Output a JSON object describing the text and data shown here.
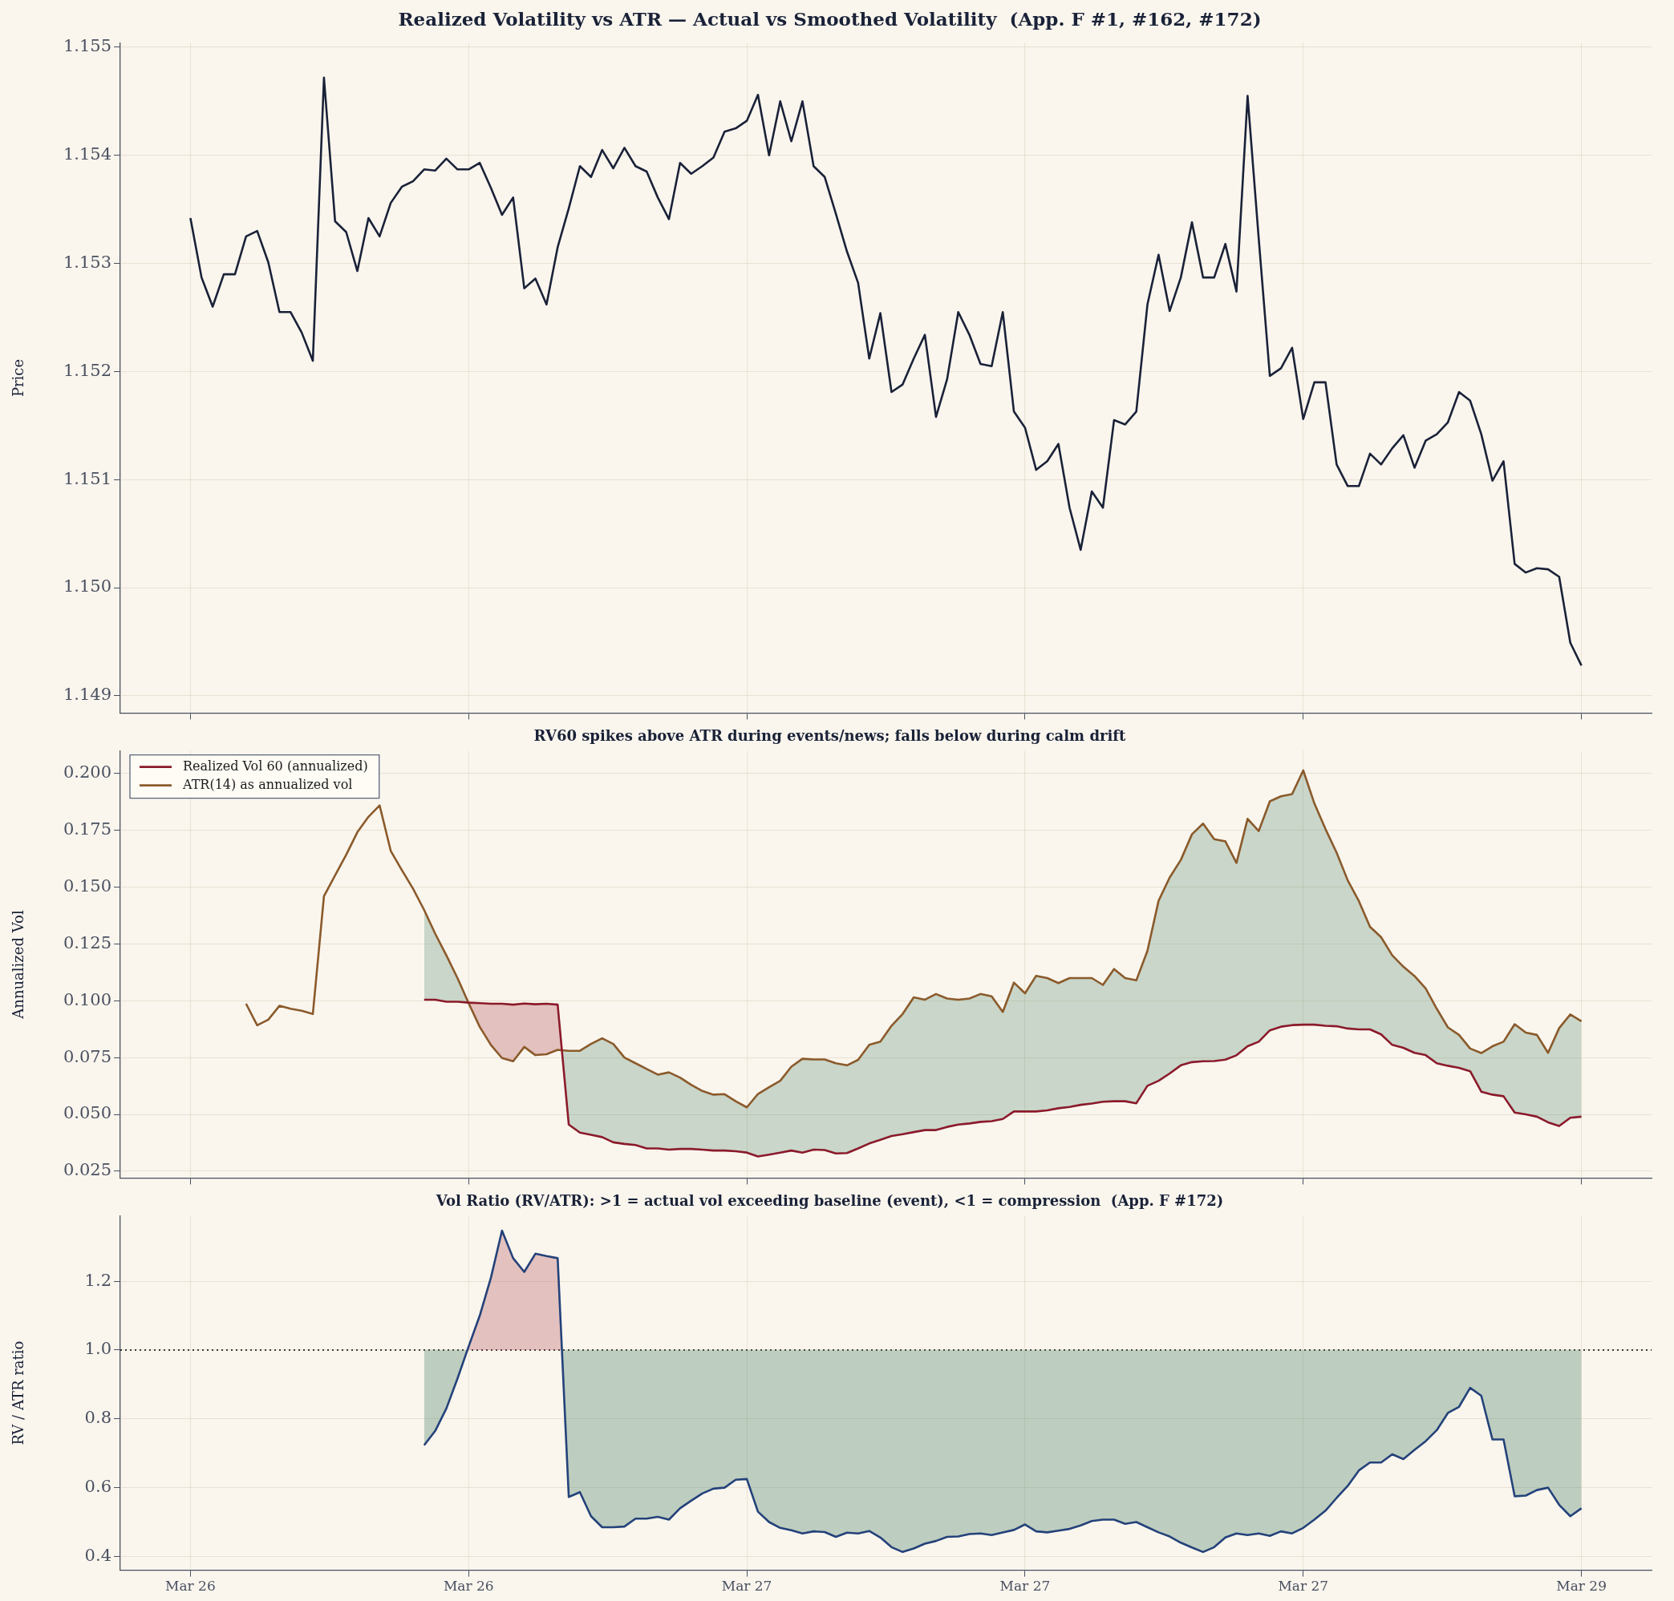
{
  "chart_data": [
    {
      "type": "line",
      "title": "Realized Volatility vs ATR — Actual vs Smoothed Volatility  (App. F #1, #162, #172)",
      "ylabel": "Price",
      "categories": [
        null,
        null,
        null,
        null,
        null,
        null,
        null,
        null,
        null,
        null,
        null,
        null,
        null,
        null,
        null,
        null,
        null,
        null,
        null,
        null,
        null,
        null,
        null,
        null,
        null,
        null,
        null,
        null,
        null,
        null,
        null,
        null,
        null,
        null,
        null,
        null,
        null,
        null,
        null,
        null,
        null,
        null,
        null,
        null,
        null,
        null,
        null,
        null,
        null,
        null,
        null,
        null,
        null,
        null,
        null,
        null,
        null,
        null,
        null,
        null,
        null,
        null,
        null,
        null,
        null,
        null,
        null,
        null,
        null,
        null,
        null,
        null,
        null,
        null,
        null,
        null,
        null,
        null,
        null,
        null,
        null,
        null,
        null,
        null,
        null,
        null,
        null,
        null,
        null,
        null,
        null,
        null,
        null,
        null,
        null,
        null,
        null,
        null,
        null,
        null,
        null,
        null,
        null,
        null,
        null,
        null,
        null,
        null,
        null,
        null,
        null,
        null,
        null,
        null,
        null,
        null,
        null,
        null,
        null,
        null,
        null,
        null,
        null,
        null,
        null,
        null
      ],
      "ylim": [
        1.14884,
        1.15504
      ],
      "yticks": [
        1.149,
        {
          "value": 1.15,
          "label": "1.150"
        },
        1.151,
        1.152,
        1.153,
        1.154,
        1.155
      ],
      "grid": true,
      "legend": false,
      "marker": "none",
      "tick_labels": "y",
      "series": [
        {
          "color": "#1a2238",
          "values": [
            1.15342,
            1.15287,
            1.1526,
            1.1529,
            1.1529,
            1.15325,
            1.1533,
            1.15301,
            1.15255,
            1.15255,
            1.15236,
            1.1521,
            1.15472,
            1.15339,
            1.15329,
            1.15293,
            1.15342,
            1.15325,
            1.15356,
            1.15371,
            1.15376,
            1.15387,
            1.15386,
            1.15397,
            1.15387,
            1.15387,
            1.15393,
            1.1537,
            1.15345,
            1.15361,
            1.15277,
            1.15286,
            1.15262,
            1.15315,
            1.15351,
            1.1539,
            1.1538,
            1.15405,
            1.15388,
            1.15407,
            1.1539,
            1.15385,
            1.15361,
            1.15341,
            1.15393,
            1.15383,
            1.1539,
            1.15398,
            1.15422,
            1.15425,
            1.15432,
            1.15456,
            1.154,
            1.1545,
            1.15413,
            1.1545,
            1.1539,
            1.1538,
            1.15346,
            1.15311,
            1.15282,
            1.15212,
            1.15254,
            1.15181,
            1.15188,
            1.15212,
            1.15234,
            1.15158,
            1.15193,
            1.15255,
            1.15234,
            1.15207,
            1.15205,
            1.15255,
            1.15163,
            1.15148,
            1.15109,
            1.15117,
            1.15133,
            1.15074,
            1.15035,
            1.15089,
            1.15074,
            1.15155,
            1.15151,
            1.15163,
            1.15262,
            1.15308,
            1.15256,
            1.15287,
            1.15338,
            1.15287,
            1.15287,
            1.15318,
            1.15274,
            1.15455,
            1.15323,
            1.15196,
            1.15203,
            1.15222,
            1.15156,
            1.1519,
            1.1519,
            1.15114,
            1.15094,
            1.15094,
            1.15124,
            1.15114,
            1.15129,
            1.15141,
            1.15111,
            1.15136,
            1.15142,
            1.15153,
            1.15181,
            1.15173,
            1.15142,
            1.15099,
            1.15117,
            1.15022,
            1.15014,
            1.15018,
            1.15017,
            1.1501,
            1.14949,
            1.14928
          ]
        }
      ]
    },
    {
      "type": "line",
      "title": "RV60 spikes above ATR during events/news; falls below during calm drift",
      "ylabel": "Annualized Vol",
      "categories": [
        null,
        null,
        null,
        null,
        null,
        null,
        null,
        null,
        null,
        null,
        null,
        null,
        null,
        null,
        null,
        null,
        null,
        null,
        null,
        null,
        null,
        null,
        null,
        null,
        null,
        null,
        null,
        null,
        null,
        null,
        null,
        null,
        null,
        null,
        null,
        null,
        null,
        null,
        null,
        null,
        null,
        null,
        null,
        null,
        null,
        null,
        null,
        null,
        null,
        null,
        null,
        null,
        null,
        null,
        null,
        null,
        null,
        null,
        null,
        null,
        null,
        null,
        null,
        null,
        null,
        null,
        null,
        null,
        null,
        null,
        null,
        null,
        null,
        null,
        null,
        null,
        null,
        null,
        null,
        null,
        null,
        null,
        null,
        null,
        null,
        null,
        null,
        null,
        null,
        null,
        null,
        null,
        null,
        null,
        null,
        null,
        null,
        null,
        null,
        null,
        null,
        null,
        null,
        null,
        null,
        null,
        null,
        null,
        null,
        null,
        null,
        null,
        null,
        null,
        null,
        null,
        null,
        null,
        null,
        null,
        null,
        null,
        null,
        null,
        null,
        null
      ],
      "ylim": [
        0.022,
        0.21
      ],
      "yticks": [
        0.025,
        {
          "value": 0.05,
          "label": "0.050"
        },
        0.075,
        {
          "value": 0.1,
          "label": "0.100"
        },
        0.125,
        {
          "value": 0.15,
          "label": "0.150"
        },
        0.175,
        {
          "value": 0.2,
          "label": "0.200"
        }
      ],
      "grid": true,
      "legend": "top left",
      "marker": "none",
      "tick_labels": "y",
      "series": [
        {
          "name": "Realized Vol 60 (annualized)",
          "color": "#8b1a2b",
          "values": [
            null,
            null,
            null,
            null,
            null,
            null,
            null,
            null,
            null,
            null,
            null,
            null,
            null,
            null,
            null,
            null,
            null,
            null,
            null,
            null,
            null,
            0.1005,
            0.1005,
            0.0996,
            0.0996,
            0.0992,
            0.099,
            0.0987,
            0.0987,
            0.0983,
            0.0988,
            0.0985,
            0.0987,
            0.0983,
            0.0455,
            0.042,
            0.041,
            0.04,
            0.0377,
            0.037,
            0.0365,
            0.035,
            0.035,
            0.0345,
            0.0348,
            0.0348,
            0.0345,
            0.0341,
            0.0341,
            0.0338,
            0.0332,
            0.0315,
            0.0323,
            0.0332,
            0.0341,
            0.0332,
            0.0345,
            0.0343,
            0.0328,
            0.033,
            0.035,
            0.0372,
            0.0388,
            0.0405,
            0.0413,
            0.0422,
            0.0431,
            0.0431,
            0.0445,
            0.0455,
            0.046,
            0.0467,
            0.047,
            0.048,
            0.0513,
            0.0513,
            0.0513,
            0.0518,
            0.0527,
            0.0533,
            0.0542,
            0.0548,
            0.0556,
            0.0558,
            0.0558,
            0.0549,
            0.0626,
            0.0648,
            0.068,
            0.0716,
            0.073,
            0.0734,
            0.0735,
            0.0741,
            0.076,
            0.08,
            0.082,
            0.087,
            0.0886,
            0.0893,
            0.0895,
            0.0895,
            0.089,
            0.0888,
            0.0878,
            0.0874,
            0.0874,
            0.0852,
            0.0806,
            0.0793,
            0.0771,
            0.0761,
            0.0725,
            0.0714,
            0.0705,
            0.069,
            0.06,
            0.0587,
            0.058,
            0.0508,
            0.05,
            0.049,
            0.0465,
            0.0449,
            0.0485,
            0.049
          ],
          "lower": [
            null,
            null,
            null,
            null,
            null,
            null,
            null,
            null,
            null,
            null,
            null,
            null,
            null,
            null,
            null,
            null,
            null,
            null,
            null,
            null,
            null,
            0.1005,
            0.1005,
            0.0996,
            0.0996,
            0.0992,
            0.099,
            0.0987,
            0.0987,
            0.0983,
            0.0988,
            0.0985,
            0.0987,
            0.0983,
            0.0455,
            0.042,
            0.041,
            0.04,
            0.0377,
            0.037,
            0.0365,
            0.035,
            0.035,
            0.0345,
            0.0348,
            0.0348,
            0.0345,
            0.0341,
            0.0341,
            0.0338,
            0.0332,
            0.0315,
            0.0323,
            0.0332,
            0.0341,
            0.0332,
            0.0345,
            0.0343,
            0.0328,
            0.033,
            0.035,
            0.0372,
            0.0388,
            0.0405,
            0.0413,
            0.0422,
            0.0431,
            0.0431,
            0.0445,
            0.0455,
            0.046,
            0.0467,
            0.047,
            0.048,
            0.0513,
            0.0513,
            0.0513,
            0.0518,
            0.0527,
            0.0533,
            0.0542,
            0.0548,
            0.0556,
            0.0558,
            0.0558,
            0.0549,
            0.0626,
            0.0648,
            0.068,
            0.0716,
            0.073,
            0.0734,
            0.0735,
            0.0741,
            0.076,
            0.08,
            0.082,
            0.087,
            0.0886,
            0.0893,
            0.0895,
            0.0895,
            0.089,
            0.0888,
            0.0878,
            0.0874,
            0.0874,
            0.0852,
            0.0806,
            0.0793,
            0.0771,
            0.0761,
            0.0725,
            0.0714,
            0.0705,
            0.069,
            0.06,
            0.0587,
            0.058,
            0.0508,
            0.05,
            0.049,
            0.0465,
            0.0449,
            0.0485,
            0.049
          ],
          "upper": [
            null,
            null,
            null,
            null,
            null,
            null,
            null,
            null,
            null,
            null,
            null,
            null,
            null,
            null,
            null,
            null,
            null,
            null,
            null,
            null,
            null,
            0.14,
            0.1295,
            0.12,
            0.11,
            0.099,
            0.0885,
            0.0806,
            0.0748,
            0.0734,
            0.0797,
            0.0761,
            0.0765,
            0.0784,
            0.078,
            0.078,
            0.081,
            0.0835,
            0.081,
            0.075,
            0.0725,
            0.07,
            0.0675,
            0.0685,
            0.0662,
            0.063,
            0.0603,
            0.0587,
            0.0589,
            0.0558,
            0.0531,
            0.059,
            0.062,
            0.0648,
            0.071,
            0.0745,
            0.0742,
            0.0742,
            0.0725,
            0.0716,
            0.074,
            0.0806,
            0.082,
            0.089,
            0.0942,
            0.1015,
            0.1005,
            0.103,
            0.101,
            0.1005,
            0.101,
            0.103,
            0.102,
            0.0951,
            0.108,
            0.1033,
            0.111,
            0.11,
            0.1078,
            0.11,
            0.11,
            0.11,
            0.107,
            0.114,
            0.11,
            0.109,
            0.122,
            0.144,
            0.1543,
            0.162,
            0.1733,
            0.178,
            0.1711,
            0.1702,
            0.1607,
            0.1801,
            0.1747,
            0.1878,
            0.19,
            0.191,
            0.2014,
            0.1869,
            0.1756,
            0.1652,
            0.153,
            0.1439,
            0.1326,
            0.128,
            0.12,
            0.115,
            0.1109,
            0.1055,
            0.0965,
            0.0883,
            0.085,
            0.079,
            0.077,
            0.08,
            0.082,
            0.0897,
            0.086,
            0.085,
            0.0771,
            0.088,
            0.094,
            0.091
          ]
        },
        {
          "name": "ATR(14) as annualized vol",
          "color": "#8b5a2b",
          "values": [
            null,
            null,
            null,
            null,
            null,
            0.0987,
            0.0892,
            0.0917,
            0.0978,
            0.0965,
            0.0956,
            0.0942,
            0.146,
            0.1552,
            0.1643,
            0.1742,
            0.181,
            0.186,
            0.166,
            0.1575,
            0.1494,
            0.14,
            0.1295,
            0.12,
            0.11,
            0.099,
            0.0885,
            0.0806,
            0.0748,
            0.0734,
            0.0797,
            0.0761,
            0.0765,
            0.0784,
            0.078,
            0.078,
            0.081,
            0.0835,
            0.081,
            0.075,
            0.0725,
            0.07,
            0.0675,
            0.0685,
            0.0662,
            0.063,
            0.0603,
            0.0587,
            0.0589,
            0.0558,
            0.0531,
            0.059,
            0.062,
            0.0648,
            0.071,
            0.0745,
            0.0742,
            0.0742,
            0.0725,
            0.0716,
            0.074,
            0.0806,
            0.082,
            0.089,
            0.0942,
            0.1015,
            0.1005,
            0.103,
            0.101,
            0.1005,
            0.101,
            0.103,
            0.102,
            0.0951,
            0.108,
            0.1033,
            0.111,
            0.11,
            0.1078,
            0.11,
            0.11,
            0.11,
            0.107,
            0.114,
            0.11,
            0.109,
            0.122,
            0.144,
            0.1543,
            0.162,
            0.1733,
            0.178,
            0.1711,
            0.1702,
            0.1607,
            0.1801,
            0.1747,
            0.1878,
            0.19,
            0.191,
            0.2014,
            0.1869,
            0.1756,
            0.1652,
            0.153,
            0.1439,
            0.1326,
            0.128,
            0.12,
            0.115,
            0.1109,
            0.1055,
            0.0965,
            0.0883,
            0.085,
            0.079,
            0.077,
            0.08,
            0.082,
            0.0897,
            0.086,
            0.085,
            0.0771,
            0.088,
            0.094,
            0.091
          ]
        }
      ]
    },
    {
      "type": "line",
      "title": "Vol Ratio (RV/ATR): >1 = actual vol exceeding baseline (event), <1 = compression  (App. F #172)",
      "ylabel": "RV / ATR ratio",
      "categories": [
        "Mar 26",
        null,
        null,
        null,
        null,
        null,
        null,
        null,
        null,
        null,
        null,
        null,
        null,
        null,
        null,
        null,
        null,
        null,
        null,
        null,
        null,
        null,
        null,
        null,
        null,
        "Mar 26",
        null,
        null,
        null,
        null,
        null,
        null,
        null,
        null,
        null,
        null,
        null,
        null,
        null,
        null,
        null,
        null,
        null,
        null,
        null,
        null,
        null,
        null,
        null,
        null,
        "Mar 27",
        null,
        null,
        null,
        null,
        null,
        null,
        null,
        null,
        null,
        null,
        null,
        null,
        null,
        null,
        null,
        null,
        null,
        null,
        null,
        null,
        null,
        null,
        null,
        null,
        "Mar 27",
        null,
        null,
        null,
        null,
        null,
        null,
        null,
        null,
        null,
        null,
        null,
        null,
        null,
        null,
        null,
        null,
        null,
        null,
        null,
        null,
        null,
        null,
        null,
        null,
        "Mar 27",
        null,
        null,
        null,
        null,
        null,
        null,
        null,
        null,
        null,
        null,
        null,
        null,
        null,
        null,
        null,
        null,
        null,
        null,
        null,
        null,
        null,
        null,
        null,
        null,
        "Mar 29"
      ],
      "ylim": [
        0.36,
        1.39
      ],
      "yticks": [
        0.4,
        0.6,
        0.8,
        {
          "value": 1,
          "label": "1.0"
        },
        1.2
      ],
      "grid": true,
      "legend": false,
      "marker": "none",
      "ref_lines": [
        {
          "axis": "y",
          "value": 1,
          "color": "#000000",
          "line_style": "dotted"
        }
      ],
      "series": [
        {
          "color": "#24427a",
          "values": [
            null,
            null,
            null,
            null,
            null,
            null,
            null,
            null,
            null,
            null,
            null,
            null,
            null,
            null,
            null,
            null,
            null,
            null,
            null,
            null,
            null,
            0.723,
            0.765,
            0.83,
            0.917,
            1.01,
            1.1,
            1.21,
            1.347,
            1.267,
            1.227,
            1.28,
            1.273,
            1.267,
            0.573,
            0.587,
            0.517,
            0.485,
            0.485,
            0.487,
            0.51,
            0.51,
            0.515,
            0.507,
            0.54,
            0.562,
            0.583,
            0.597,
            0.6,
            0.623,
            0.625,
            0.53,
            0.5,
            0.483,
            0.476,
            0.467,
            0.473,
            0.471,
            0.457,
            0.469,
            0.467,
            0.474,
            0.455,
            0.427,
            0.413,
            0.423,
            0.437,
            0.445,
            0.457,
            0.458,
            0.465,
            0.467,
            0.462,
            0.47,
            0.477,
            0.493,
            0.473,
            0.47,
            0.475,
            0.48,
            0.49,
            0.503,
            0.507,
            0.507,
            0.495,
            0.5,
            0.485,
            0.47,
            0.458,
            0.44,
            0.426,
            0.413,
            0.427,
            0.455,
            0.467,
            0.462,
            0.467,
            0.46,
            0.473,
            0.467,
            0.483,
            0.507,
            0.533,
            0.57,
            0.605,
            0.65,
            0.673,
            0.673,
            0.697,
            0.683,
            0.71,
            0.735,
            0.767,
            0.817,
            0.835,
            0.89,
            0.867,
            0.74,
            0.74,
            0.575,
            0.577,
            0.593,
            0.6,
            0.55,
            0.517,
            0.54
          ]
        }
      ]
    }
  ]
}
